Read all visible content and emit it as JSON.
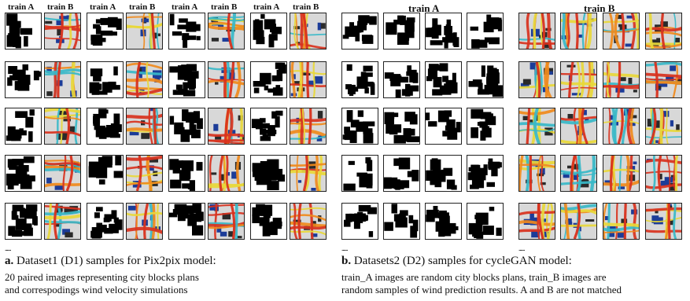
{
  "panel_a": {
    "col_label_a": "train  A",
    "col_label_b": "train  B",
    "columns": [
      "A",
      "B",
      "A",
      "B",
      "A",
      "B",
      "A",
      "B"
    ],
    "rows": 5,
    "ellipsis": "......",
    "caption_letter": "a.",
    "caption_title": "Dataset1 (D1) samples for Pix2pix model:",
    "caption_line1": " 20 paired images representing city blocks plans",
    "caption_line2": "and correspodings wind velocity simulations"
  },
  "panel_b": {
    "title_a": "train  A",
    "title_b": "train  B",
    "cols_a": 4,
    "cols_b": 4,
    "rows": 5,
    "ellipsis": "......",
    "caption_letter": "b.",
    "caption_title": "Datasets2  (D2) samples for cycleGAN model:",
    "caption_line1": " train_A images are random city blocks plans, train_B images are",
    "caption_line2": "random samples of wind prediction results. A and B are not matched"
  },
  "colors": {
    "block": "#000000",
    "street": "#ffffff",
    "wind_bg": "#d8d8d8",
    "wind_hot": "#d8321e",
    "wind_warm": "#f08a1c",
    "wind_mid": "#e8d83a",
    "wind_cool": "#38b8c8",
    "wind_cold": "#1c3c98"
  }
}
